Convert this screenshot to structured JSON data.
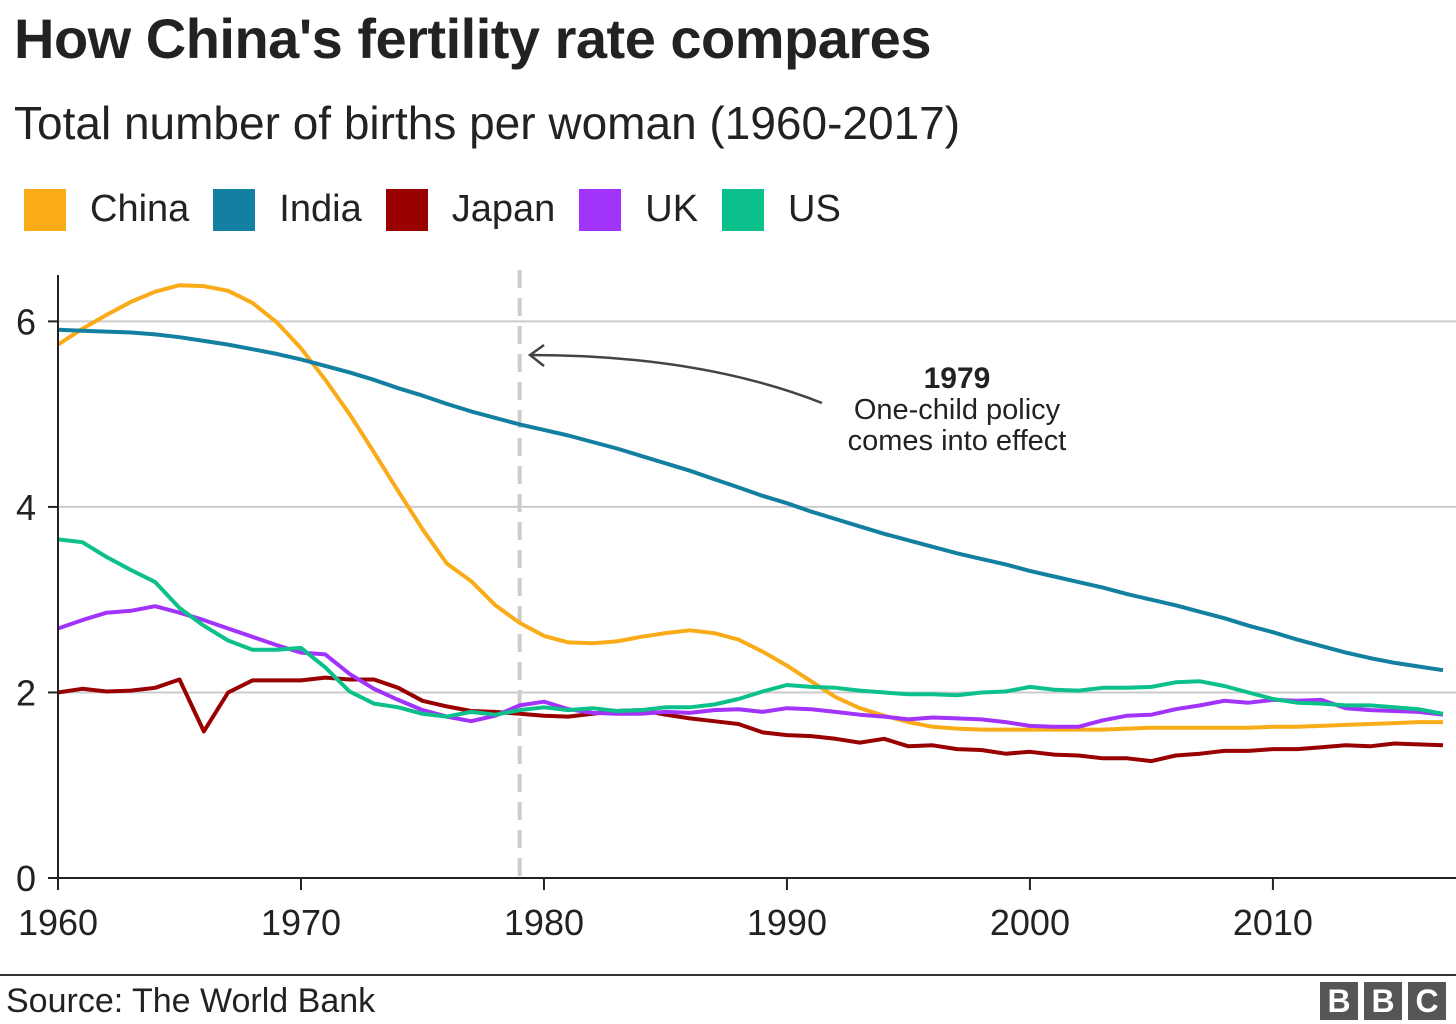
{
  "chart_data": {
    "type": "line",
    "title": "How China's fertility rate compares",
    "subtitle": "Total number of births per woman (1960-2017)",
    "xlim": [
      1960,
      2017
    ],
    "ylim": [
      0,
      6.5
    ],
    "x_ticks": [
      1960,
      1970,
      1980,
      1990,
      2000,
      2010
    ],
    "y_ticks": [
      0,
      2,
      4,
      6
    ],
    "grid": "horizontal",
    "legend": "top-left",
    "x": [
      1960,
      1961,
      1962,
      1963,
      1964,
      1965,
      1966,
      1967,
      1968,
      1969,
      1970,
      1971,
      1972,
      1973,
      1974,
      1975,
      1976,
      1977,
      1978,
      1979,
      1980,
      1981,
      1982,
      1983,
      1984,
      1985,
      1986,
      1987,
      1988,
      1989,
      1990,
      1991,
      1992,
      1993,
      1994,
      1995,
      1996,
      1997,
      1998,
      1999,
      2000,
      2001,
      2002,
      2003,
      2004,
      2005,
      2006,
      2007,
      2008,
      2009,
      2010,
      2011,
      2012,
      2013,
      2014,
      2015,
      2016,
      2017
    ],
    "series": [
      {
        "name": "China",
        "color": "#FAAB18",
        "values": [
          5.75,
          5.92,
          6.07,
          6.21,
          6.32,
          6.39,
          6.38,
          6.33,
          6.2,
          5.99,
          5.71,
          5.37,
          5.0,
          4.59,
          4.17,
          3.76,
          3.39,
          3.2,
          2.94,
          2.75,
          2.61,
          2.54,
          2.53,
          2.55,
          2.6,
          2.64,
          2.67,
          2.64,
          2.57,
          2.44,
          2.29,
          2.12,
          1.95,
          1.83,
          1.75,
          1.68,
          1.63,
          1.61,
          1.6,
          1.6,
          1.6,
          1.6,
          1.6,
          1.6,
          1.61,
          1.62,
          1.62,
          1.62,
          1.62,
          1.62,
          1.63,
          1.63,
          1.64,
          1.65,
          1.66,
          1.67,
          1.68,
          1.68
        ]
      },
      {
        "name": "India",
        "color": "#1380A1",
        "values": [
          5.91,
          5.9,
          5.89,
          5.88,
          5.86,
          5.83,
          5.79,
          5.75,
          5.7,
          5.65,
          5.59,
          5.52,
          5.45,
          5.37,
          5.28,
          5.2,
          5.11,
          5.03,
          4.96,
          4.89,
          4.83,
          4.77,
          4.7,
          4.63,
          4.55,
          4.47,
          4.39,
          4.3,
          4.21,
          4.12,
          4.04,
          3.95,
          3.87,
          3.79,
          3.71,
          3.64,
          3.57,
          3.5,
          3.44,
          3.38,
          3.31,
          3.25,
          3.19,
          3.13,
          3.06,
          3.0,
          2.94,
          2.87,
          2.8,
          2.72,
          2.65,
          2.57,
          2.5,
          2.43,
          2.37,
          2.32,
          2.28,
          2.24
        ]
      },
      {
        "name": "Japan",
        "color": "#990000",
        "values": [
          2.0,
          2.04,
          2.01,
          2.02,
          2.05,
          2.14,
          1.58,
          2.0,
          2.13,
          2.13,
          2.13,
          2.16,
          2.14,
          2.14,
          2.05,
          1.91,
          1.85,
          1.8,
          1.79,
          1.77,
          1.75,
          1.74,
          1.77,
          1.8,
          1.81,
          1.76,
          1.72,
          1.69,
          1.66,
          1.57,
          1.54,
          1.53,
          1.5,
          1.46,
          1.5,
          1.42,
          1.43,
          1.39,
          1.38,
          1.34,
          1.36,
          1.33,
          1.32,
          1.29,
          1.29,
          1.26,
          1.32,
          1.34,
          1.37,
          1.37,
          1.39,
          1.39,
          1.41,
          1.43,
          1.42,
          1.45,
          1.44,
          1.43
        ]
      },
      {
        "name": "UK",
        "color": "#A233FA",
        "values": [
          2.69,
          2.78,
          2.86,
          2.88,
          2.93,
          2.86,
          2.78,
          2.69,
          2.6,
          2.51,
          2.43,
          2.41,
          2.2,
          2.04,
          1.92,
          1.81,
          1.74,
          1.69,
          1.75,
          1.86,
          1.9,
          1.82,
          1.78,
          1.77,
          1.77,
          1.79,
          1.78,
          1.81,
          1.82,
          1.79,
          1.83,
          1.82,
          1.79,
          1.76,
          1.74,
          1.71,
          1.73,
          1.72,
          1.71,
          1.68,
          1.64,
          1.63,
          1.63,
          1.7,
          1.75,
          1.76,
          1.82,
          1.86,
          1.91,
          1.89,
          1.92,
          1.91,
          1.92,
          1.83,
          1.81,
          1.8,
          1.79,
          1.76
        ]
      },
      {
        "name": "US",
        "color": "#0CC08B",
        "values": [
          3.65,
          3.62,
          3.46,
          3.32,
          3.19,
          2.91,
          2.72,
          2.56,
          2.46,
          2.46,
          2.48,
          2.27,
          2.01,
          1.88,
          1.84,
          1.77,
          1.74,
          1.79,
          1.76,
          1.81,
          1.84,
          1.81,
          1.83,
          1.8,
          1.81,
          1.84,
          1.84,
          1.87,
          1.93,
          2.01,
          2.08,
          2.06,
          2.05,
          2.02,
          2.0,
          1.98,
          1.98,
          1.97,
          2.0,
          2.01,
          2.06,
          2.03,
          2.02,
          2.05,
          2.05,
          2.06,
          2.11,
          2.12,
          2.07,
          2.0,
          1.93,
          1.89,
          1.88,
          1.86,
          1.86,
          1.84,
          1.82,
          1.77
        ]
      }
    ],
    "annotation": {
      "x": 1979,
      "label_year": "1979",
      "label_line1": "One-child policy",
      "label_line2": "comes into effect"
    },
    "source": "Source: The World Bank"
  },
  "branding": {
    "logo": [
      "B",
      "B",
      "C"
    ]
  }
}
